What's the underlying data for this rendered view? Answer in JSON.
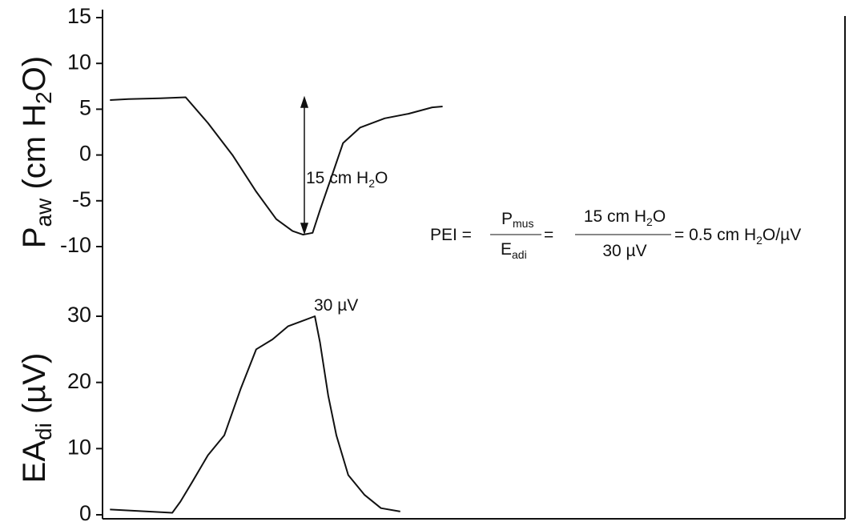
{
  "chart_data": [
    {
      "type": "line",
      "ylabel": [
        "P",
        "aw",
        " (cm H",
        "2",
        "O)"
      ],
      "x": [
        1,
        3.5,
        7.8,
        11.2,
        14.2,
        17.5,
        20.7,
        23.4,
        25.6,
        27,
        28.3,
        29.3,
        31,
        32.4,
        34.7,
        38,
        41.2,
        44.4,
        45.8
      ],
      "values": [
        6.0,
        6.1,
        6.2,
        6.3,
        3.5,
        0,
        -4,
        -7,
        -8.3,
        -8.7,
        -8.5,
        -6,
        -2,
        1.3,
        3,
        4,
        4.5,
        5.2,
        5.3
      ],
      "color": "#111111",
      "xlim": [
        0,
        100
      ],
      "ylim": [
        -10,
        15
      ],
      "yticks": [
        15,
        10,
        5,
        0,
        -5,
        -10
      ],
      "annotation": [
        "15 cm H",
        "2",
        "O"
      ],
      "equation": [
        "PEI =",
        "P",
        "mus",
        "E",
        "adi",
        "=",
        "15 cm H",
        "2",
        "O",
        "30 µV",
        "= 0.5 cm H",
        "2",
        "O/µV"
      ]
    },
    {
      "type": "line",
      "ylabel": [
        "EA",
        "di",
        " (µV)"
      ],
      "x": [
        1,
        9.4,
        10.5,
        12.1,
        14.2,
        16.4,
        18.6,
        20.7,
        22.9,
        25,
        28.6,
        29.3,
        30.4,
        31.5,
        33.1,
        35.3,
        37.5,
        40.1
      ],
      "values": [
        0.8,
        0.3,
        2,
        5,
        9,
        12,
        19,
        25,
        26.5,
        28.5,
        30,
        26,
        18,
        12,
        6,
        3,
        1,
        0.5
      ],
      "color": "#111111",
      "xlim": [
        0,
        100
      ],
      "ylim": [
        0,
        30
      ],
      "yticks": [
        30,
        20,
        10,
        0
      ],
      "annotation": [
        "30 µV"
      ]
    }
  ]
}
